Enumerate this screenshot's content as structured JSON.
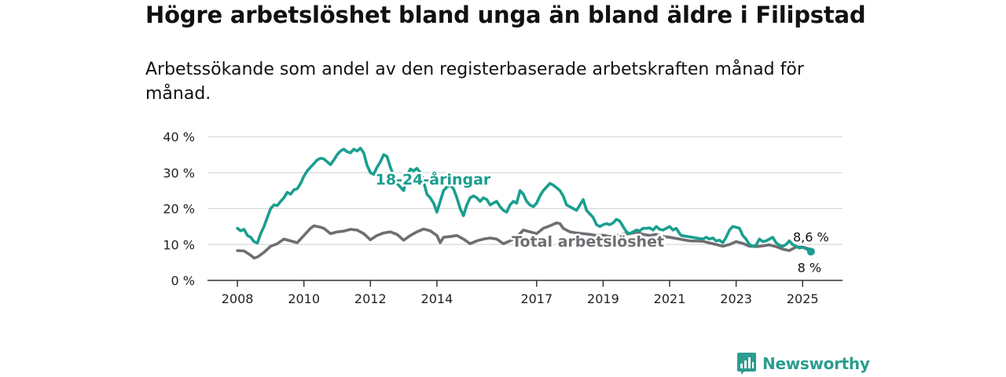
{
  "title": "Högre arbetslöshet bland unga än bland äldre i Filipstad",
  "subtitle": "Arbetssökande som andel av den registerbaserade arbetskraften månad för månad.",
  "brand": {
    "name": "Newsworthy",
    "icon": "newsworthy-logo-icon",
    "color": "#2a9d8f"
  },
  "chart_data": {
    "type": "line",
    "title": "Högre arbetslöshet bland unga än bland äldre i Filipstad",
    "subtitle": "Arbetssökande som andel av den registerbaserade arbetskraften månad för månad.",
    "y_unit": "%",
    "ylim": [
      0,
      40
    ],
    "yticks": [
      0,
      10,
      20,
      30,
      40
    ],
    "ytick_labels": [
      "0 %",
      "10 %",
      "20 %",
      "30 %",
      "40 %"
    ],
    "xlim": [
      2007.1,
      2026.2
    ],
    "xticks": [
      2008,
      2010,
      2012,
      2014,
      2017,
      2019,
      2021,
      2023,
      2025
    ],
    "xtick_labels": [
      "2008",
      "2010",
      "2012",
      "2014",
      "2017",
      "2019",
      "2021",
      "2023",
      "2025"
    ],
    "grid": true,
    "series": [
      {
        "name": "18-24-åringar",
        "color": "#1a9e8f",
        "last_value_label": "8 %",
        "points": [
          [
            2008.0,
            14.5
          ],
          [
            2008.1,
            13.8
          ],
          [
            2008.2,
            14.2
          ],
          [
            2008.3,
            12.5
          ],
          [
            2008.4,
            12.0
          ],
          [
            2008.5,
            10.8
          ],
          [
            2008.6,
            10.4
          ],
          [
            2008.7,
            13.0
          ],
          [
            2008.8,
            15.0
          ],
          [
            2008.9,
            17.5
          ],
          [
            2009.0,
            20.0
          ],
          [
            2009.1,
            21.0
          ],
          [
            2009.2,
            20.8
          ],
          [
            2009.3,
            22.0
          ],
          [
            2009.4,
            23.0
          ],
          [
            2009.5,
            24.5
          ],
          [
            2009.6,
            24.0
          ],
          [
            2009.7,
            25.2
          ],
          [
            2009.8,
            25.5
          ],
          [
            2009.9,
            27.0
          ],
          [
            2010.0,
            29.0
          ],
          [
            2010.1,
            30.5
          ],
          [
            2010.2,
            31.5
          ],
          [
            2010.3,
            32.5
          ],
          [
            2010.4,
            33.5
          ],
          [
            2010.5,
            34.0
          ],
          [
            2010.6,
            33.8
          ],
          [
            2010.7,
            33.0
          ],
          [
            2010.8,
            32.2
          ],
          [
            2010.9,
            33.5
          ],
          [
            2011.0,
            35.0
          ],
          [
            2011.1,
            36.0
          ],
          [
            2011.2,
            36.5
          ],
          [
            2011.3,
            35.8
          ],
          [
            2011.4,
            35.5
          ],
          [
            2011.5,
            36.5
          ],
          [
            2011.6,
            36.0
          ],
          [
            2011.7,
            36.8
          ],
          [
            2011.8,
            35.5
          ],
          [
            2011.9,
            32.0
          ],
          [
            2012.0,
            30.0
          ],
          [
            2012.1,
            29.5
          ],
          [
            2012.2,
            31.5
          ],
          [
            2012.3,
            33.0
          ],
          [
            2012.4,
            35.0
          ],
          [
            2012.5,
            34.5
          ],
          [
            2012.6,
            31.5
          ],
          [
            2012.7,
            29.0
          ],
          [
            2012.8,
            27.0
          ],
          [
            2012.9,
            26.0
          ],
          [
            2013.0,
            25.0
          ],
          [
            2013.1,
            29.0
          ],
          [
            2013.2,
            31.0
          ],
          [
            2013.3,
            30.5
          ],
          [
            2013.4,
            31.2
          ],
          [
            2013.5,
            30.0
          ],
          [
            2013.6,
            27.5
          ],
          [
            2013.7,
            24.0
          ],
          [
            2013.8,
            23.0
          ],
          [
            2013.9,
            21.5
          ],
          [
            2014.0,
            19.0
          ],
          [
            2014.1,
            22.0
          ],
          [
            2014.2,
            25.0
          ],
          [
            2014.3,
            26.0
          ],
          [
            2014.4,
            26.5
          ],
          [
            2014.5,
            25.5
          ],
          [
            2014.6,
            23.0
          ],
          [
            2014.7,
            20.0
          ],
          [
            2014.8,
            18.0
          ],
          [
            2014.9,
            21.0
          ],
          [
            2015.0,
            23.0
          ],
          [
            2015.1,
            23.5
          ],
          [
            2015.2,
            23.0
          ],
          [
            2015.3,
            22.0
          ],
          [
            2015.4,
            23.0
          ],
          [
            2015.5,
            22.5
          ],
          [
            2015.6,
            21.0
          ],
          [
            2015.7,
            21.5
          ],
          [
            2015.8,
            22.0
          ],
          [
            2015.9,
            20.5
          ],
          [
            2016.0,
            19.5
          ],
          [
            2016.1,
            19.0
          ],
          [
            2016.2,
            21.0
          ],
          [
            2016.3,
            22.0
          ],
          [
            2016.4,
            21.5
          ],
          [
            2016.5,
            25.0
          ],
          [
            2016.6,
            24.0
          ],
          [
            2016.7,
            22.0
          ],
          [
            2016.8,
            21.0
          ],
          [
            2016.9,
            20.5
          ],
          [
            2017.0,
            21.5
          ],
          [
            2017.1,
            23.5
          ],
          [
            2017.2,
            25.0
          ],
          [
            2017.3,
            26.0
          ],
          [
            2017.4,
            27.0
          ],
          [
            2017.5,
            26.5
          ],
          [
            2017.6,
            25.8
          ],
          [
            2017.7,
            25.0
          ],
          [
            2017.8,
            23.5
          ],
          [
            2017.9,
            21.0
          ],
          [
            2018.0,
            20.5
          ],
          [
            2018.1,
            20.0
          ],
          [
            2018.2,
            19.5
          ],
          [
            2018.3,
            21.0
          ],
          [
            2018.4,
            22.5
          ],
          [
            2018.5,
            19.5
          ],
          [
            2018.6,
            18.5
          ],
          [
            2018.7,
            17.5
          ],
          [
            2018.8,
            15.5
          ],
          [
            2018.9,
            15.0
          ],
          [
            2019.0,
            15.5
          ],
          [
            2019.1,
            15.8
          ],
          [
            2019.2,
            15.5
          ],
          [
            2019.3,
            16.0
          ],
          [
            2019.4,
            17.0
          ],
          [
            2019.5,
            16.5
          ],
          [
            2019.6,
            15.0
          ],
          [
            2019.7,
            13.5
          ],
          [
            2019.8,
            13.0
          ],
          [
            2019.9,
            13.5
          ],
          [
            2020.0,
            14.0
          ],
          [
            2020.1,
            13.8
          ],
          [
            2020.2,
            14.5
          ],
          [
            2020.3,
            14.5
          ],
          [
            2020.4,
            14.6
          ],
          [
            2020.5,
            14.0
          ],
          [
            2020.6,
            15.0
          ],
          [
            2020.7,
            14.2
          ],
          [
            2020.8,
            14.0
          ],
          [
            2020.9,
            14.5
          ],
          [
            2021.0,
            15.0
          ],
          [
            2021.1,
            14.0
          ],
          [
            2021.2,
            14.5
          ],
          [
            2021.3,
            13.0
          ],
          [
            2021.35,
            12.5
          ],
          [
            2022.0,
            11.5
          ],
          [
            2022.1,
            12.0
          ],
          [
            2022.2,
            11.5
          ],
          [
            2022.3,
            11.8
          ],
          [
            2022.4,
            11.0
          ],
          [
            2022.5,
            11.2
          ],
          [
            2022.6,
            10.5
          ],
          [
            2022.7,
            12.0
          ],
          [
            2022.8,
            14.0
          ],
          [
            2022.9,
            15.0
          ],
          [
            2023.0,
            14.8
          ],
          [
            2023.1,
            14.5
          ],
          [
            2023.2,
            12.5
          ],
          [
            2023.3,
            11.5
          ],
          [
            2023.4,
            10.0
          ],
          [
            2023.5,
            9.5
          ],
          [
            2023.6,
            9.8
          ],
          [
            2023.7,
            11.5
          ],
          [
            2023.8,
            10.8
          ],
          [
            2023.9,
            11.0
          ],
          [
            2024.0,
            11.5
          ],
          [
            2024.1,
            12.0
          ],
          [
            2024.2,
            10.5
          ],
          [
            2024.3,
            9.8
          ],
          [
            2024.4,
            9.5
          ],
          [
            2024.5,
            10.0
          ],
          [
            2024.6,
            11.0
          ],
          [
            2024.7,
            10.0
          ],
          [
            2024.8,
            9.5
          ],
          [
            2024.9,
            9.0
          ],
          [
            2025.0,
            9.2
          ],
          [
            2025.1,
            8.8
          ],
          [
            2025.25,
            8.0
          ]
        ]
      },
      {
        "name": "Total arbetslöshet",
        "color": "#6e6e73",
        "last_value_label": "8,6 %",
        "points": [
          [
            2008.0,
            8.3
          ],
          [
            2008.2,
            8.2
          ],
          [
            2008.4,
            7.0
          ],
          [
            2008.5,
            6.2
          ],
          [
            2008.6,
            6.5
          ],
          [
            2008.8,
            7.8
          ],
          [
            2009.0,
            9.5
          ],
          [
            2009.2,
            10.2
          ],
          [
            2009.4,
            11.5
          ],
          [
            2009.6,
            11.0
          ],
          [
            2009.8,
            10.5
          ],
          [
            2010.0,
            12.5
          ],
          [
            2010.2,
            14.5
          ],
          [
            2010.3,
            15.2
          ],
          [
            2010.5,
            14.8
          ],
          [
            2010.6,
            14.5
          ],
          [
            2010.8,
            13.0
          ],
          [
            2011.0,
            13.5
          ],
          [
            2011.2,
            13.7
          ],
          [
            2011.4,
            14.2
          ],
          [
            2011.6,
            14.0
          ],
          [
            2011.8,
            13.0
          ],
          [
            2012.0,
            11.3
          ],
          [
            2012.2,
            12.5
          ],
          [
            2012.4,
            13.2
          ],
          [
            2012.6,
            13.5
          ],
          [
            2012.8,
            12.8
          ],
          [
            2013.0,
            11.2
          ],
          [
            2013.2,
            12.5
          ],
          [
            2013.4,
            13.5
          ],
          [
            2013.6,
            14.3
          ],
          [
            2013.8,
            13.8
          ],
          [
            2014.0,
            12.5
          ],
          [
            2014.1,
            10.5
          ],
          [
            2014.2,
            12.0
          ],
          [
            2014.4,
            12.2
          ],
          [
            2014.6,
            12.5
          ],
          [
            2014.8,
            11.5
          ],
          [
            2015.0,
            10.2
          ],
          [
            2015.2,
            11.0
          ],
          [
            2015.4,
            11.5
          ],
          [
            2015.6,
            11.8
          ],
          [
            2015.8,
            11.5
          ],
          [
            2016.0,
            10.2
          ],
          [
            2016.2,
            11.0
          ],
          [
            2016.4,
            12.0
          ],
          [
            2016.6,
            14.0
          ],
          [
            2016.8,
            13.5
          ],
          [
            2017.0,
            13.0
          ],
          [
            2017.2,
            14.5
          ],
          [
            2017.4,
            15.2
          ],
          [
            2017.6,
            16.0
          ],
          [
            2017.7,
            15.8
          ],
          [
            2017.8,
            14.5
          ],
          [
            2018.0,
            13.5
          ],
          [
            2018.2,
            13.2
          ],
          [
            2018.4,
            13.0
          ],
          [
            2018.6,
            12.8
          ],
          [
            2018.8,
            12.5
          ],
          [
            2019.0,
            12.6
          ],
          [
            2019.2,
            12.2
          ],
          [
            2019.4,
            12.5
          ],
          [
            2019.6,
            12.8
          ],
          [
            2019.8,
            13.0
          ],
          [
            2020.0,
            13.4
          ],
          [
            2020.2,
            12.8
          ],
          [
            2020.4,
            12.5
          ],
          [
            2020.6,
            12.8
          ],
          [
            2020.8,
            12.2
          ],
          [
            2021.0,
            12.0
          ],
          [
            2021.3,
            11.5
          ],
          [
            2021.6,
            11.0
          ],
          [
            2022.0,
            10.9
          ],
          [
            2022.2,
            10.4
          ],
          [
            2022.4,
            10.0
          ],
          [
            2022.6,
            9.5
          ],
          [
            2022.8,
            10.0
          ],
          [
            2023.0,
            10.8
          ],
          [
            2023.2,
            10.3
          ],
          [
            2023.4,
            9.5
          ],
          [
            2023.6,
            9.4
          ],
          [
            2023.8,
            9.6
          ],
          [
            2024.0,
            9.9
          ],
          [
            2024.2,
            9.4
          ],
          [
            2024.4,
            8.7
          ],
          [
            2024.6,
            8.3
          ],
          [
            2024.8,
            9.3
          ],
          [
            2025.0,
            9.3
          ],
          [
            2025.25,
            8.6
          ]
        ]
      }
    ]
  }
}
